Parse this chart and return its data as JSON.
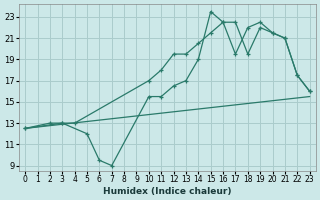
{
  "xlabel": "Humidex (Indice chaleur)",
  "xlim": [
    -0.5,
    23.5
  ],
  "ylim": [
    8.5,
    24.2
  ],
  "yticks": [
    9,
    11,
    13,
    15,
    17,
    19,
    21,
    23
  ],
  "xticks": [
    0,
    1,
    2,
    3,
    4,
    5,
    6,
    7,
    8,
    9,
    10,
    11,
    12,
    13,
    14,
    15,
    16,
    17,
    18,
    19,
    20,
    21,
    22,
    23
  ],
  "bg_color": "#cce8e8",
  "grid_color": "#aacccc",
  "line_color": "#2a7a6a",
  "line1_x": [
    0,
    2,
    3,
    5,
    6,
    7,
    10,
    11,
    12,
    13,
    14,
    15,
    16,
    17,
    18,
    19,
    20,
    21,
    22,
    23
  ],
  "line1_y": [
    12.5,
    13,
    13,
    12,
    9.5,
    9.0,
    15.5,
    15.5,
    16.5,
    17.0,
    19.0,
    23.5,
    22.5,
    22.5,
    19.5,
    22.0,
    21.5,
    21.0,
    17.5,
    16.0
  ],
  "line2_x": [
    0,
    3,
    4,
    10,
    11,
    12,
    13,
    14,
    15,
    16,
    17,
    18,
    19,
    20,
    21,
    22,
    23
  ],
  "line2_y": [
    12.5,
    13,
    13,
    17.0,
    18.0,
    19.5,
    19.5,
    20.5,
    21.5,
    22.5,
    19.5,
    22.0,
    22.5,
    21.5,
    21.0,
    17.5,
    16.0
  ],
  "line3_x": [
    0,
    23
  ],
  "line3_y": [
    12.5,
    15.5
  ],
  "tick_fontsize": 5.5,
  "xlabel_fontsize": 6.5
}
